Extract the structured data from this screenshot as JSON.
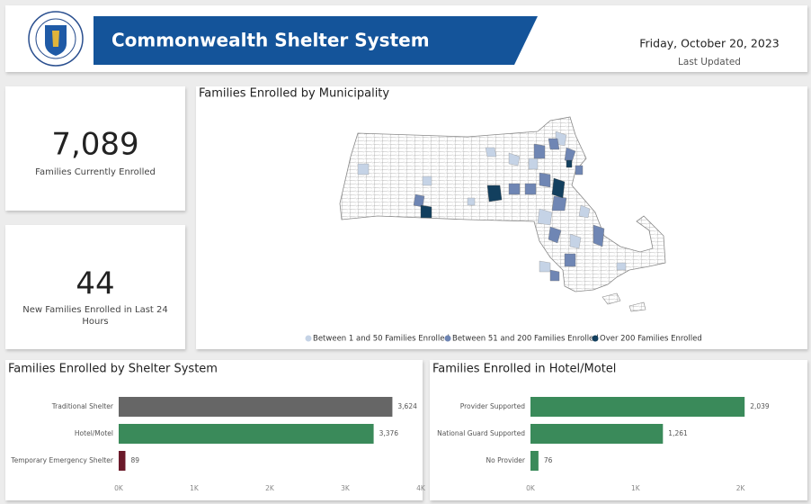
{
  "header": {
    "title": "Commonwealth Shelter System",
    "date": "Friday, October 20, 2023",
    "date_label": "Last Updated"
  },
  "kpis": [
    {
      "value": "7,089",
      "label": "Families Currently Enrolled"
    },
    {
      "value": "44",
      "label": "New Families Enrolled in Last 24 Hours"
    }
  ],
  "map": {
    "title": "Families Enrolled by Municipality",
    "legend": [
      {
        "label": "Between 1 and 50 Families Enrolled",
        "color": "#c5d3e6"
      },
      {
        "label": "Between 51 and 200 Families Enrolled",
        "color": "#6f86b4"
      },
      {
        "label": "Over 200 Families Enrolled",
        "color": "#123f5e"
      }
    ]
  },
  "chart_data": [
    {
      "type": "bar",
      "orientation": "horizontal",
      "title": "Families Enrolled by Shelter System",
      "categories": [
        "Traditional Shelter",
        "Hotel/Motel",
        "Temporary Emergency Shelter"
      ],
      "values": [
        3624,
        3376,
        89
      ],
      "value_labels": [
        "3,624",
        "3,376",
        "89"
      ],
      "colors": [
        "#666666",
        "#3a8a5a",
        "#6b1a2a"
      ],
      "xlim": [
        0,
        4000
      ],
      "xticks": [
        {
          "value": 0,
          "label": "0K"
        },
        {
          "value": 1000,
          "label": "1K"
        },
        {
          "value": 2000,
          "label": "2K"
        },
        {
          "value": 3000,
          "label": "3K"
        },
        {
          "value": 4000,
          "label": "4K"
        }
      ]
    },
    {
      "type": "bar",
      "orientation": "horizontal",
      "title": "Families Enrolled in Hotel/Motel",
      "categories": [
        "Provider Supported",
        "National Guard Supported",
        "No Provider"
      ],
      "values": [
        2039,
        1261,
        76
      ],
      "value_labels": [
        "2,039",
        "1,261",
        "76"
      ],
      "colors": [
        "#3a8a5a",
        "#3a8a5a",
        "#3a8a5a"
      ],
      "xlim": [
        0,
        2200
      ],
      "xticks": [
        {
          "value": 0,
          "label": "0K"
        },
        {
          "value": 1000,
          "label": "1K"
        },
        {
          "value": 2000,
          "label": "2K"
        }
      ]
    }
  ]
}
